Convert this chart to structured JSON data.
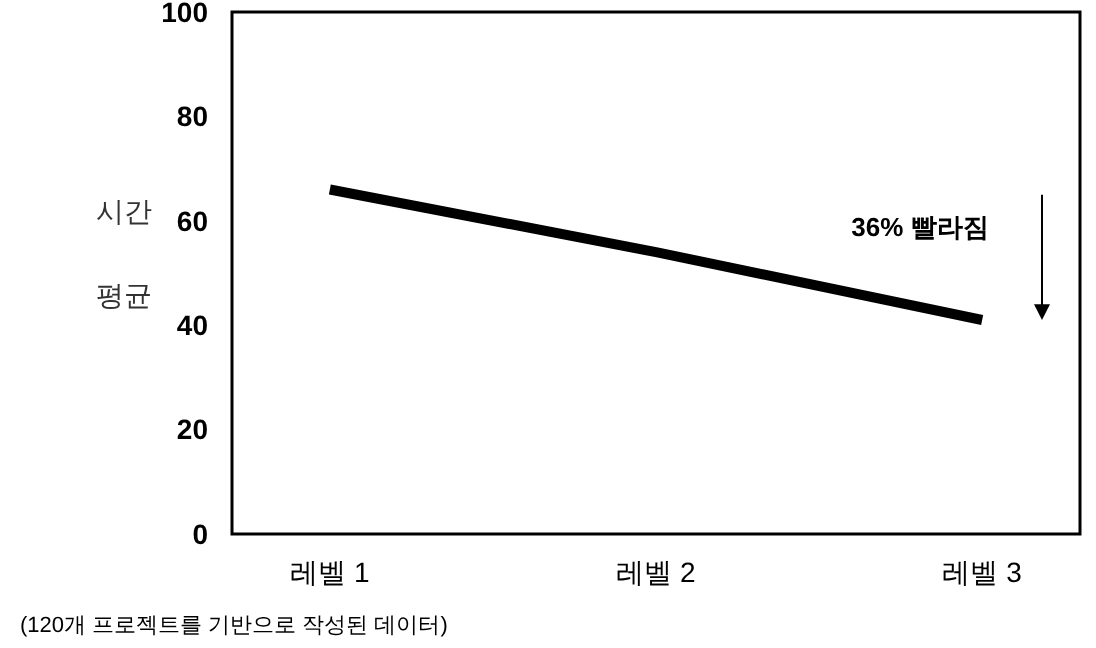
{
  "chart_data": {
    "type": "line",
    "ylabel": "시간 평균",
    "categories": [
      "레벨 1",
      "레벨 2",
      "레벨 3"
    ],
    "ylim": [
      0,
      100
    ],
    "yticks": [
      0,
      20,
      40,
      60,
      80,
      100
    ],
    "series": [
      {
        "color": "#000000",
        "values": [
          66,
          54,
          41
        ]
      }
    ],
    "annotations": [
      "36% 빨라짐",
      "(120개 프로젝트를 기반으로 작성된 데이터)"
    ],
    "grid": false,
    "marker": "none",
    "line_style": "solid"
  }
}
